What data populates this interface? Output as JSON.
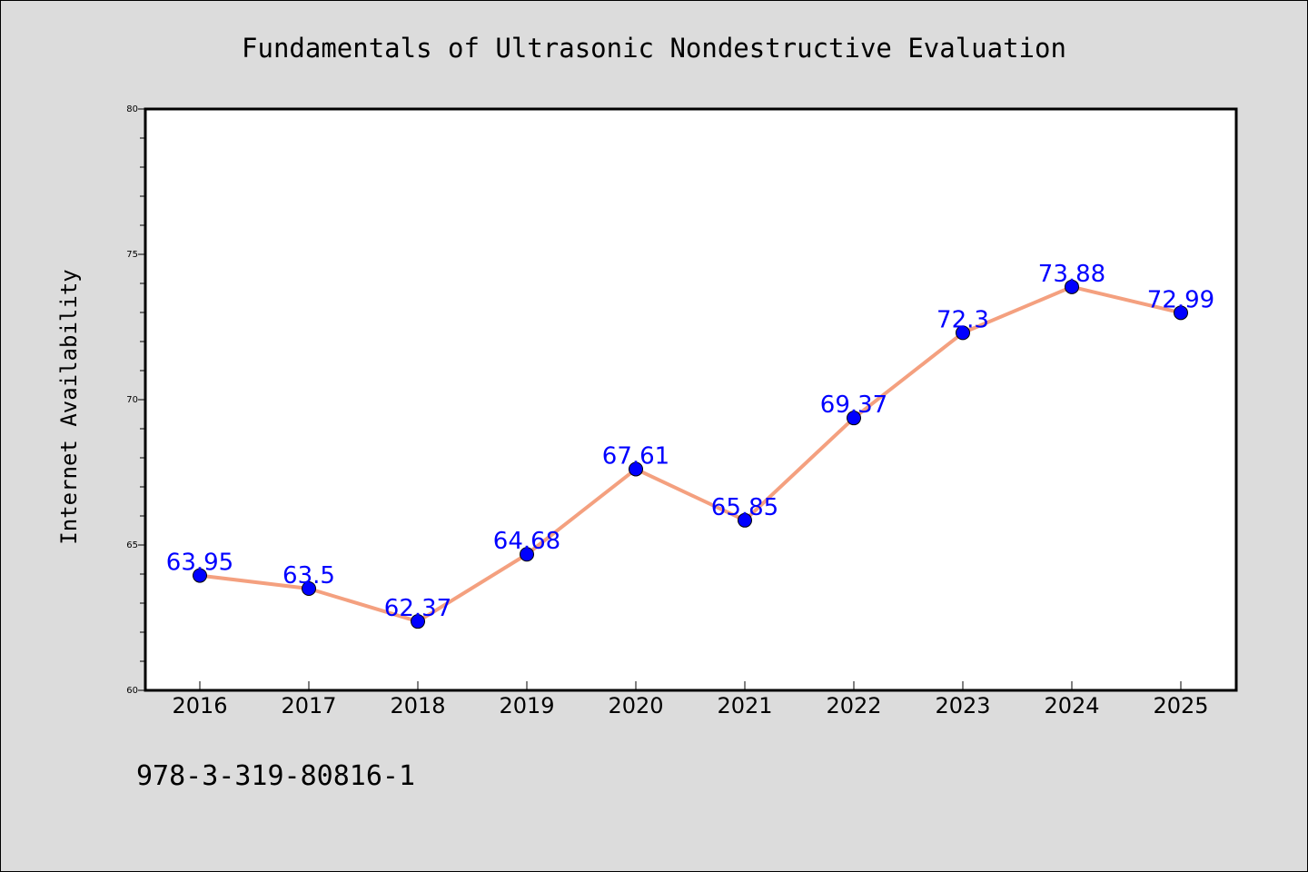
{
  "chart_data": {
    "type": "line",
    "title": "Fundamentals of Ultrasonic Nondestructive Evaluation",
    "xlabel": "",
    "ylabel": "Internet Availability",
    "categories": [
      "2016",
      "2017",
      "2018",
      "2019",
      "2020",
      "2021",
      "2022",
      "2023",
      "2024",
      "2025"
    ],
    "series": [
      {
        "values": [
          63.95,
          63.5,
          62.37,
          64.68,
          67.61,
          65.85,
          69.37,
          72.3,
          73.88,
          72.99
        ],
        "labels": [
          "63.95",
          "63.5",
          "62.37",
          "64.68",
          "67.61",
          "65.85",
          "69.37",
          "72.3",
          "73.88",
          "72.99"
        ]
      }
    ],
    "ylim": [
      60,
      80
    ],
    "yticks": [
      "60",
      "65",
      "70",
      "75",
      "80"
    ],
    "grid": false,
    "colors": {
      "line": "#f4a07f",
      "marker": "#0000ff",
      "label": "#0000ff"
    }
  },
  "footer": {
    "isbn": "978-3-319-80816-1"
  }
}
